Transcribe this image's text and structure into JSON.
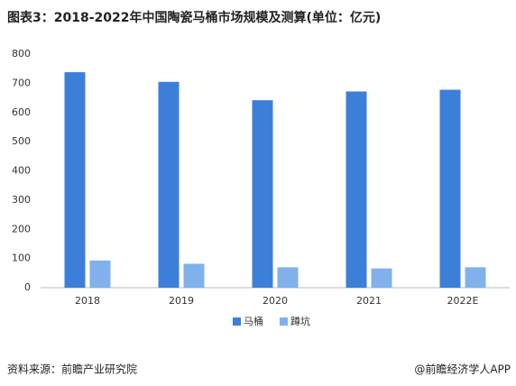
{
  "chart_data": {
    "type": "bar",
    "title": "图表3：2018-2022年中国陶瓷马桶市场规模及测算(单位：亿元)",
    "categories": [
      "2018",
      "2019",
      "2020",
      "2021",
      "2022E"
    ],
    "series": [
      {
        "name": "马桶",
        "color": "#3c7fd9",
        "values": [
          738,
          705,
          642,
          672,
          678
        ]
      },
      {
        "name": "蹲坑",
        "color": "#80b1ec",
        "values": [
          93,
          82,
          70,
          66,
          70
        ]
      }
    ],
    "ylim": [
      0,
      800
    ],
    "yticks": [
      0,
      100,
      200,
      300,
      400,
      500,
      600,
      700,
      800
    ],
    "grid": false,
    "legend": "bottom",
    "source": "资料来源：前瞻产业研究院",
    "credit": "@前瞻经济学人APP"
  }
}
